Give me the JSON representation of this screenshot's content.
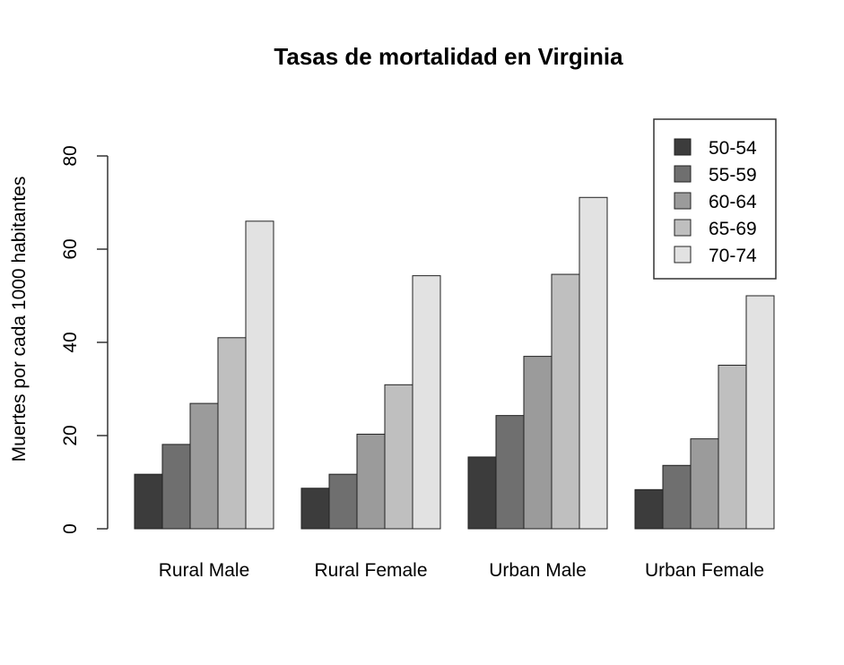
{
  "chart_data": {
    "type": "bar",
    "title": "Tasas de mortalidad en Virginia",
    "xlabel": "",
    "ylabel": "Muertes por cada 1000 habitantes",
    "ylim": [
      0,
      80
    ],
    "yticks": [
      0,
      20,
      40,
      60,
      80
    ],
    "categories": [
      "Rural Male",
      "Rural Female",
      "Urban Male",
      "Urban Female"
    ],
    "series": [
      {
        "name": "50-54",
        "color": "#3c3c3c",
        "values": [
          11.7,
          8.7,
          15.4,
          8.4
        ]
      },
      {
        "name": "55-59",
        "color": "#6f6f6f",
        "values": [
          18.1,
          11.7,
          24.3,
          13.6
        ]
      },
      {
        "name": "60-64",
        "color": "#9b9b9b",
        "values": [
          26.9,
          20.3,
          37.0,
          19.3
        ]
      },
      {
        "name": "65-69",
        "color": "#bfbfbf",
        "values": [
          41.0,
          30.9,
          54.6,
          35.1
        ]
      },
      {
        "name": "70-74",
        "color": "#e2e2e2",
        "values": [
          66.0,
          54.3,
          71.1,
          50.0
        ]
      }
    ],
    "legend": "top-right",
    "grid": false
  }
}
